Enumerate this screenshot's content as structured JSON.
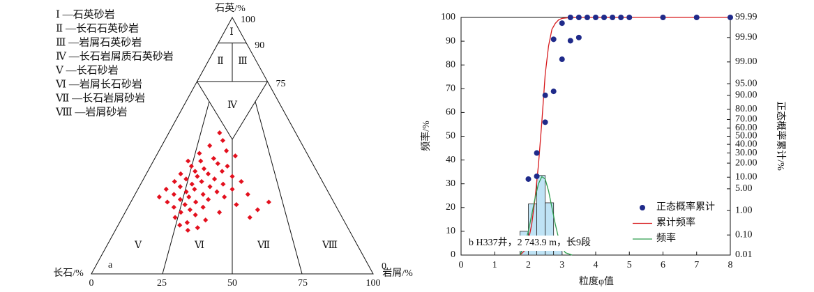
{
  "chart_data": [
    {
      "type": "ternary",
      "legend": [
        "Ⅰ —石英砂岩",
        "Ⅱ —长石石英砂岩",
        "Ⅲ —岩屑石英砂岩",
        "Ⅳ —长石岩屑质石英砂岩",
        "Ⅴ —长石砂岩",
        "Ⅵ —岩屑长石砂岩",
        "Ⅶ —长石岩屑砂岩",
        "Ⅷ —岩屑砂岩"
      ],
      "top_label": "石英/%",
      "left_label": "长石/%",
      "right_label": "岩屑/%",
      "panel": "a",
      "regions": [
        "Ⅰ",
        "Ⅱ",
        "Ⅲ",
        "Ⅳ",
        "Ⅴ",
        "Ⅵ",
        "Ⅶ",
        "Ⅷ"
      ],
      "xlim": [
        0,
        100
      ],
      "xticks": [
        0,
        25,
        50,
        75,
        100
      ],
      "ylim": [
        0,
        100
      ],
      "yticks": [
        100,
        90,
        75,
        0
      ],
      "series": [
        {
          "color": "#e3101e",
          "x": [
            40,
            43,
            34,
            46,
            28,
            52,
            38,
            30,
            22,
            41,
            25,
            47,
            33,
            28,
            44,
            20,
            36,
            30,
            50,
            24,
            40,
            18,
            33,
            55,
            28,
            45,
            22,
            38,
            15,
            30,
            50,
            26,
            42,
            20,
            35,
            58,
            13,
            28,
            46,
            24,
            38,
            18,
            32,
            68,
            27,
            52,
            22,
            36,
            30,
            62,
            26,
            44,
            33,
            24,
            58,
            38,
            30,
            27,
            35,
            31
          ],
          "values": [
            55,
            52,
            50,
            48,
            47,
            46,
            45,
            44,
            44,
            43,
            42,
            42,
            41,
            40,
            40,
            39,
            39,
            38,
            38,
            37,
            37,
            36,
            36,
            36,
            35,
            35,
            34,
            34,
            33,
            33,
            33,
            32,
            32,
            31,
            31,
            31,
            30,
            30,
            30,
            29,
            29,
            28,
            28,
            28,
            27,
            27,
            26,
            26,
            25,
            25,
            24,
            24,
            23,
            22,
            22,
            21,
            20,
            19,
            18,
            17
          ]
        }
      ]
    },
    {
      "type": "line",
      "x_label": "粒度φ值",
      "y_label": "频率/%",
      "y2_label": "正态概率累计/%",
      "annotation": "b  H337井，2 743.9 m，长9段",
      "xlim": [
        0,
        8
      ],
      "xticks": [
        0,
        1,
        2,
        3,
        4,
        5,
        6,
        7,
        8
      ],
      "ylim": [
        0,
        100
      ],
      "yticks": [
        0,
        10,
        20,
        30,
        40,
        50,
        60,
        70,
        80,
        90,
        100
      ],
      "y2lim": [
        0.01,
        99.99
      ],
      "y2scale": "probability",
      "y2ticks": [
        0.01,
        {
          "value": 0.1,
          "label": "0.10"
        },
        {
          "value": 1,
          "label": "1.00"
        },
        {
          "value": 5,
          "label": "5.00"
        },
        {
          "value": 10,
          "label": "10.00"
        },
        {
          "value": 20,
          "label": "20.00"
        },
        {
          "value": 30,
          "label": "30.00"
        },
        {
          "value": 40,
          "label": "40.00"
        },
        {
          "value": 50,
          "label": "50.00"
        },
        {
          "value": 60,
          "label": "60.00"
        },
        {
          "value": 70,
          "label": "70.00"
        },
        {
          "value": 80,
          "label": "80.00"
        },
        {
          "value": 90,
          "label": "90.00"
        },
        {
          "value": 95,
          "label": "95.00"
        },
        {
          "value": 99,
          "label": "99.00"
        },
        {
          "value": 99.9,
          "label": "99.90"
        },
        99.99
      ],
      "legend": "lower right",
      "histogram": {
        "color": "#bfe3f5",
        "bins": [
          1.75,
          2,
          2.25,
          2.5,
          2.75,
          3
        ],
        "values": [
          10,
          21.5,
          33.5,
          22,
          3
        ]
      },
      "series": [
        {
          "name": "正态概率累计",
          "type": "scatter",
          "color": "#1f2a8a",
          "axis": "y2",
          "x": [
            2.0,
            2.25,
            2.25,
            2.5,
            2.5,
            2.75,
            2.75,
            3.0,
            3.0,
            3.25,
            3.25,
            3.5,
            3.5,
            3.75,
            4.0,
            4.25,
            4.5,
            4.75,
            5.0,
            6.0,
            7.0,
            8.0
          ],
          "values": [
            9,
            30,
            10.5,
            67,
            90,
            92,
            99.88,
            99.2,
            99.98,
            99.86,
            99.99,
            99.9,
            99.99,
            99.99,
            99.99,
            99.99,
            99.99,
            99.99,
            99.99,
            99.99,
            99.99,
            99.99
          ]
        },
        {
          "name": "累计频率",
          "type": "line",
          "color": "#d7191c",
          "x": [
            1.75,
            1.9,
            2.0,
            2.1,
            2.2,
            2.3,
            2.4,
            2.5,
            2.6,
            2.7,
            2.8,
            2.9,
            3.0,
            3.2,
            3.5,
            4,
            5,
            6,
            7,
            8
          ],
          "values": [
            0,
            2,
            6,
            13,
            24,
            38,
            56,
            76,
            88,
            95,
            97.5,
            99,
            99.6,
            99.9,
            100,
            100,
            100,
            100,
            100,
            100
          ]
        },
        {
          "name": "频率",
          "type": "line",
          "color": "#2e9e4e",
          "x": [
            1.75,
            1.9,
            2.0,
            2.1,
            2.2,
            2.3,
            2.4,
            2.5,
            2.6,
            2.7,
            2.8,
            2.9,
            3.0,
            3.1,
            3.3
          ],
          "values": [
            0,
            5,
            10,
            17,
            24,
            30,
            33,
            32,
            27,
            20,
            13,
            7,
            3,
            1,
            0
          ]
        }
      ]
    }
  ]
}
